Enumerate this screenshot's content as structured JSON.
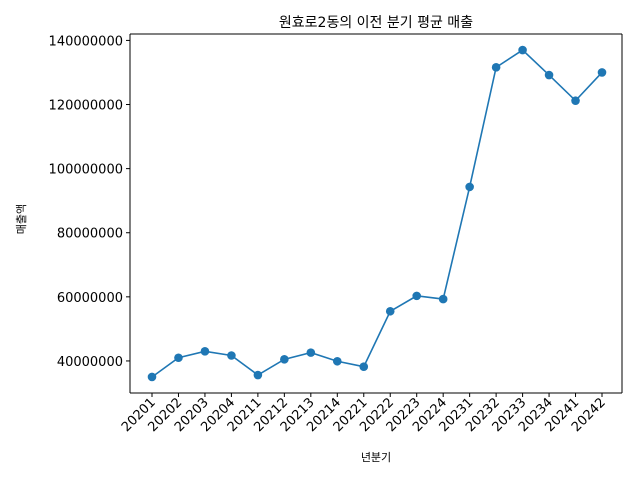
{
  "chart_data": {
    "type": "line",
    "title": "원효로2동의 이전 분기 평균 매출",
    "xlabel": "년분기",
    "ylabel": "매출액",
    "categories": [
      "20201",
      "20202",
      "20203",
      "20204",
      "20211",
      "20212",
      "20213",
      "20214",
      "20221",
      "20222",
      "20223",
      "20224",
      "20231",
      "20232",
      "20233",
      "20234",
      "20241",
      "20242"
    ],
    "series": [
      {
        "values": [
          35000000,
          41000000,
          43000000,
          41700000,
          35600000,
          40500000,
          42600000,
          39900000,
          38200000,
          55500000,
          60300000,
          59300000,
          94300000,
          131600000,
          137000000,
          129200000,
          121200000,
          130000000
        ],
        "color": "#1f77b4"
      }
    ],
    "yticks": [
      40000000,
      60000000,
      80000000,
      100000000,
      120000000,
      140000000
    ],
    "ytick_labels": [
      "40000000",
      "60000000",
      "80000000",
      "100000000",
      "120000000",
      "140000000"
    ],
    "ylim": [
      30000000,
      142000000
    ],
    "grid": false,
    "legend": "none"
  }
}
